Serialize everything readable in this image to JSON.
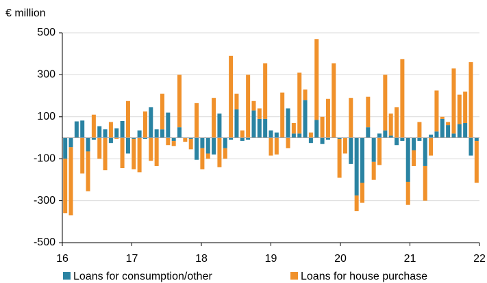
{
  "chart_data": {
    "type": "bar",
    "stacked": true,
    "y_label": "€ million",
    "xlim": [
      16,
      22
    ],
    "xticks": [
      16,
      17,
      18,
      19,
      20,
      21,
      22
    ],
    "ylim": [
      -500,
      500
    ],
    "yticks": [
      -500,
      -300,
      -100,
      100,
      300,
      500
    ],
    "grid": true,
    "legend": "bottom",
    "categories": [
      null,
      null,
      null,
      null,
      null,
      null,
      null,
      null,
      null,
      null,
      null,
      null,
      null,
      null,
      null,
      null,
      null,
      null,
      null,
      null,
      null,
      null,
      null,
      null,
      null,
      null,
      null,
      null,
      null,
      null,
      null,
      null,
      null,
      null,
      null,
      null,
      null,
      null,
      null,
      null,
      null,
      null,
      null,
      null,
      null,
      null,
      null,
      null,
      null,
      null,
      null,
      null,
      null,
      null,
      null,
      null,
      null,
      null,
      null,
      null,
      null,
      null,
      null,
      null,
      null,
      null,
      null,
      null,
      null,
      null,
      null,
      null,
      null
    ],
    "series": [
      {
        "name": "Loans for consumption/other",
        "color": "#2a83a2",
        "values": [
          -100,
          -45,
          78,
          82,
          -65,
          -10,
          55,
          40,
          -25,
          45,
          80,
          -75,
          -5,
          35,
          -5,
          145,
          40,
          40,
          120,
          -15,
          50,
          0,
          -5,
          -105,
          -50,
          -75,
          -80,
          115,
          -50,
          -10,
          135,
          -15,
          -10,
          130,
          90,
          90,
          35,
          25,
          0,
          140,
          20,
          20,
          180,
          -25,
          85,
          -30,
          -10,
          0,
          -5,
          0,
          -125,
          -275,
          -215,
          50,
          -115,
          20,
          35,
          10,
          -35,
          -15,
          -210,
          -60,
          -15,
          -135,
          15,
          30,
          90,
          60,
          20,
          65,
          70,
          -85,
          -15
        ]
      },
      {
        "name": "Loans for house purchase",
        "color": "#f0912b",
        "values": [
          -260,
          -325,
          0,
          -170,
          -190,
          110,
          -100,
          -155,
          75,
          -5,
          -145,
          175,
          -145,
          -165,
          125,
          -110,
          -135,
          170,
          -35,
          -25,
          250,
          -20,
          -50,
          165,
          -100,
          -25,
          190,
          -140,
          -50,
          390,
          75,
          35,
          300,
          45,
          50,
          265,
          -85,
          -80,
          215,
          -50,
          50,
          290,
          50,
          25,
          385,
          100,
          185,
          355,
          -185,
          -75,
          190,
          -75,
          -95,
          145,
          -85,
          -130,
          265,
          105,
          145,
          375,
          -110,
          -75,
          75,
          -165,
          -85,
          195,
          10,
          15,
          310,
          140,
          150,
          360,
          -200
        ]
      }
    ]
  }
}
